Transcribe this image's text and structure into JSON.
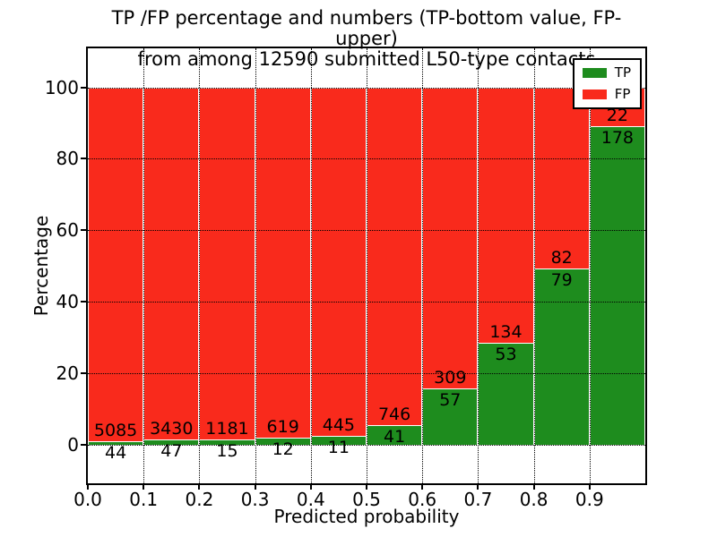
{
  "colors": {
    "tp": "#1e8c1e",
    "fp": "#f92a1c",
    "bar_edge": "#ffffff",
    "grid": "#000000",
    "frame": "#000000",
    "text": "#000000",
    "background": "#ffffff"
  },
  "chart_data": {
    "type": "bar",
    "stacked": true,
    "normalized_to_percent": true,
    "title": "TP /FP percentage and numbers (TP-bottom value, FP-upper)\nfrom among 12590 submitted L50-type contacts",
    "title_lines": [
      "TP /FP percentage and numbers (TP-bottom value, FP-upper)",
      "from among 12590 submitted L50-type contacts"
    ],
    "xlabel": "Predicted probability",
    "ylabel": "Percentage",
    "xlim": [
      0.0,
      1.0
    ],
    "ylim": [
      -10.7,
      110.9
    ],
    "grid": true,
    "grid_style": "dotted black, drawn above bars",
    "x_tick_labels": [
      "0.0",
      "0.1",
      "0.2",
      "0.3",
      "0.4",
      "0.5",
      "0.6",
      "0.7",
      "0.8",
      "0.9"
    ],
    "x_tick_values": [
      0.0,
      0.1,
      0.2,
      0.3,
      0.4,
      0.5,
      0.6,
      0.7,
      0.8,
      0.9
    ],
    "y_tick_labels": [
      "0",
      "20",
      "40",
      "60",
      "80",
      "100"
    ],
    "y_tick_values": [
      0,
      20,
      40,
      60,
      80,
      100
    ],
    "categories": [
      "0.0-0.1",
      "0.1-0.2",
      "0.2-0.3",
      "0.3-0.4",
      "0.4-0.5",
      "0.5-0.6",
      "0.6-0.7",
      "0.7-0.8",
      "0.8-0.9",
      "0.9-1.0"
    ],
    "bin_width": 0.1,
    "total_contacts": 12590,
    "series": [
      {
        "name": "TP",
        "color": "#1e8c1e",
        "position": "bottom",
        "counts": [
          44,
          47,
          15,
          12,
          11,
          41,
          57,
          53,
          79,
          178
        ],
        "percent": [
          0.86,
          1.35,
          1.25,
          1.9,
          2.41,
          5.21,
          15.57,
          28.34,
          49.07,
          89.0
        ]
      },
      {
        "name": "FP",
        "color": "#f92a1c",
        "position": "top",
        "counts": [
          5085,
          3430,
          1181,
          619,
          445,
          746,
          309,
          134,
          82,
          22
        ],
        "percent": [
          99.14,
          98.65,
          98.75,
          98.1,
          97.59,
          94.79,
          84.43,
          71.66,
          50.93,
          11.0
        ]
      }
    ],
    "legend": {
      "position": "upper right",
      "entries": [
        {
          "label": "TP",
          "color": "#1e8c1e"
        },
        {
          "label": "FP",
          "color": "#f92a1c"
        }
      ]
    }
  }
}
